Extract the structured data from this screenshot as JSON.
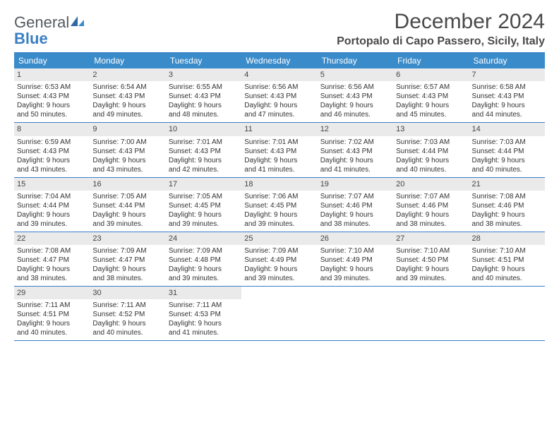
{
  "logo": {
    "word1": "General",
    "word2": "Blue"
  },
  "title": "December 2024",
  "location": "Portopalo di Capo Passero, Sicily, Italy",
  "colors": {
    "header_bar": "#3a8bca",
    "accent_border": "#3a7fc4",
    "daynum_bg": "#eaeaea",
    "text": "#333333",
    "title_text": "#4a4a4a"
  },
  "weekdays": [
    "Sunday",
    "Monday",
    "Tuesday",
    "Wednesday",
    "Thursday",
    "Friday",
    "Saturday"
  ],
  "weeks": [
    [
      {
        "n": "1",
        "sr": "Sunrise: 6:53 AM",
        "ss": "Sunset: 4:43 PM",
        "d1": "Daylight: 9 hours",
        "d2": "and 50 minutes."
      },
      {
        "n": "2",
        "sr": "Sunrise: 6:54 AM",
        "ss": "Sunset: 4:43 PM",
        "d1": "Daylight: 9 hours",
        "d2": "and 49 minutes."
      },
      {
        "n": "3",
        "sr": "Sunrise: 6:55 AM",
        "ss": "Sunset: 4:43 PM",
        "d1": "Daylight: 9 hours",
        "d2": "and 48 minutes."
      },
      {
        "n": "4",
        "sr": "Sunrise: 6:56 AM",
        "ss": "Sunset: 4:43 PM",
        "d1": "Daylight: 9 hours",
        "d2": "and 47 minutes."
      },
      {
        "n": "5",
        "sr": "Sunrise: 6:56 AM",
        "ss": "Sunset: 4:43 PM",
        "d1": "Daylight: 9 hours",
        "d2": "and 46 minutes."
      },
      {
        "n": "6",
        "sr": "Sunrise: 6:57 AM",
        "ss": "Sunset: 4:43 PM",
        "d1": "Daylight: 9 hours",
        "d2": "and 45 minutes."
      },
      {
        "n": "7",
        "sr": "Sunrise: 6:58 AM",
        "ss": "Sunset: 4:43 PM",
        "d1": "Daylight: 9 hours",
        "d2": "and 44 minutes."
      }
    ],
    [
      {
        "n": "8",
        "sr": "Sunrise: 6:59 AM",
        "ss": "Sunset: 4:43 PM",
        "d1": "Daylight: 9 hours",
        "d2": "and 43 minutes."
      },
      {
        "n": "9",
        "sr": "Sunrise: 7:00 AM",
        "ss": "Sunset: 4:43 PM",
        "d1": "Daylight: 9 hours",
        "d2": "and 43 minutes."
      },
      {
        "n": "10",
        "sr": "Sunrise: 7:01 AM",
        "ss": "Sunset: 4:43 PM",
        "d1": "Daylight: 9 hours",
        "d2": "and 42 minutes."
      },
      {
        "n": "11",
        "sr": "Sunrise: 7:01 AM",
        "ss": "Sunset: 4:43 PM",
        "d1": "Daylight: 9 hours",
        "d2": "and 41 minutes."
      },
      {
        "n": "12",
        "sr": "Sunrise: 7:02 AM",
        "ss": "Sunset: 4:43 PM",
        "d1": "Daylight: 9 hours",
        "d2": "and 41 minutes."
      },
      {
        "n": "13",
        "sr": "Sunrise: 7:03 AM",
        "ss": "Sunset: 4:44 PM",
        "d1": "Daylight: 9 hours",
        "d2": "and 40 minutes."
      },
      {
        "n": "14",
        "sr": "Sunrise: 7:03 AM",
        "ss": "Sunset: 4:44 PM",
        "d1": "Daylight: 9 hours",
        "d2": "and 40 minutes."
      }
    ],
    [
      {
        "n": "15",
        "sr": "Sunrise: 7:04 AM",
        "ss": "Sunset: 4:44 PM",
        "d1": "Daylight: 9 hours",
        "d2": "and 39 minutes."
      },
      {
        "n": "16",
        "sr": "Sunrise: 7:05 AM",
        "ss": "Sunset: 4:44 PM",
        "d1": "Daylight: 9 hours",
        "d2": "and 39 minutes."
      },
      {
        "n": "17",
        "sr": "Sunrise: 7:05 AM",
        "ss": "Sunset: 4:45 PM",
        "d1": "Daylight: 9 hours",
        "d2": "and 39 minutes."
      },
      {
        "n": "18",
        "sr": "Sunrise: 7:06 AM",
        "ss": "Sunset: 4:45 PM",
        "d1": "Daylight: 9 hours",
        "d2": "and 39 minutes."
      },
      {
        "n": "19",
        "sr": "Sunrise: 7:07 AM",
        "ss": "Sunset: 4:46 PM",
        "d1": "Daylight: 9 hours",
        "d2": "and 38 minutes."
      },
      {
        "n": "20",
        "sr": "Sunrise: 7:07 AM",
        "ss": "Sunset: 4:46 PM",
        "d1": "Daylight: 9 hours",
        "d2": "and 38 minutes."
      },
      {
        "n": "21",
        "sr": "Sunrise: 7:08 AM",
        "ss": "Sunset: 4:46 PM",
        "d1": "Daylight: 9 hours",
        "d2": "and 38 minutes."
      }
    ],
    [
      {
        "n": "22",
        "sr": "Sunrise: 7:08 AM",
        "ss": "Sunset: 4:47 PM",
        "d1": "Daylight: 9 hours",
        "d2": "and 38 minutes."
      },
      {
        "n": "23",
        "sr": "Sunrise: 7:09 AM",
        "ss": "Sunset: 4:47 PM",
        "d1": "Daylight: 9 hours",
        "d2": "and 38 minutes."
      },
      {
        "n": "24",
        "sr": "Sunrise: 7:09 AM",
        "ss": "Sunset: 4:48 PM",
        "d1": "Daylight: 9 hours",
        "d2": "and 39 minutes."
      },
      {
        "n": "25",
        "sr": "Sunrise: 7:09 AM",
        "ss": "Sunset: 4:49 PM",
        "d1": "Daylight: 9 hours",
        "d2": "and 39 minutes."
      },
      {
        "n": "26",
        "sr": "Sunrise: 7:10 AM",
        "ss": "Sunset: 4:49 PM",
        "d1": "Daylight: 9 hours",
        "d2": "and 39 minutes."
      },
      {
        "n": "27",
        "sr": "Sunrise: 7:10 AM",
        "ss": "Sunset: 4:50 PM",
        "d1": "Daylight: 9 hours",
        "d2": "and 39 minutes."
      },
      {
        "n": "28",
        "sr": "Sunrise: 7:10 AM",
        "ss": "Sunset: 4:51 PM",
        "d1": "Daylight: 9 hours",
        "d2": "and 40 minutes."
      }
    ],
    [
      {
        "n": "29",
        "sr": "Sunrise: 7:11 AM",
        "ss": "Sunset: 4:51 PM",
        "d1": "Daylight: 9 hours",
        "d2": "and 40 minutes."
      },
      {
        "n": "30",
        "sr": "Sunrise: 7:11 AM",
        "ss": "Sunset: 4:52 PM",
        "d1": "Daylight: 9 hours",
        "d2": "and 40 minutes."
      },
      {
        "n": "31",
        "sr": "Sunrise: 7:11 AM",
        "ss": "Sunset: 4:53 PM",
        "d1": "Daylight: 9 hours",
        "d2": "and 41 minutes."
      },
      null,
      null,
      null,
      null
    ]
  ]
}
